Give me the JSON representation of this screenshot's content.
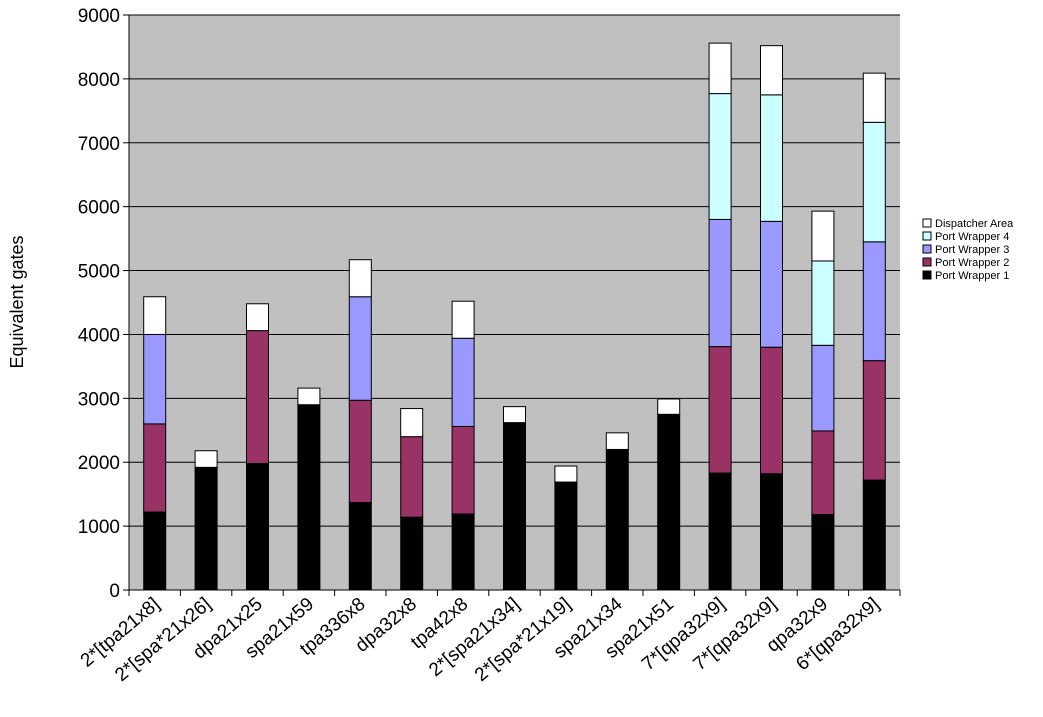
{
  "chart_data": {
    "type": "bar",
    "stacked": true,
    "title": "",
    "xlabel": "",
    "ylabel": "Equivalent gates",
    "ylim": [
      0,
      9000
    ],
    "yticks": [
      0,
      1000,
      2000,
      3000,
      4000,
      5000,
      6000,
      7000,
      8000,
      9000
    ],
    "grid": true,
    "legend_position": "right",
    "categories": [
      "2*[tpa21x8]",
      "2*[spa*21x26]",
      "dpa21x25",
      "spa21x59",
      "tpa336x8",
      "dpa32x8",
      "tpa42x8",
      "2*[spa21x34]",
      "2*[spa*21x19]",
      "spa21x34",
      "spa21x51",
      "7*[qpa32x9]",
      "7*[qpa32x9]",
      "qpa32x9",
      "6*[qpa32x9]"
    ],
    "series": [
      {
        "name": "Port Wrapper 1",
        "color": "#000000",
        "values": [
          1220,
          1920,
          1980,
          2900,
          1370,
          1140,
          1190,
          2620,
          1690,
          2200,
          2750,
          1830,
          1820,
          1180,
          1720
        ]
      },
      {
        "name": "Port Wrapper 2",
        "color": "#993366",
        "values": [
          1380,
          0,
          2080,
          0,
          1600,
          1260,
          1370,
          0,
          0,
          0,
          0,
          1980,
          1980,
          1310,
          1870
        ]
      },
      {
        "name": "Port Wrapper 3",
        "color": "#9999FF",
        "values": [
          1400,
          0,
          0,
          0,
          1620,
          0,
          1380,
          0,
          0,
          0,
          0,
          1990,
          1970,
          1340,
          1860
        ]
      },
      {
        "name": "Port Wrapper 4",
        "color": "#CCFFFF",
        "values": [
          0,
          0,
          0,
          0,
          0,
          0,
          0,
          0,
          0,
          0,
          0,
          1970,
          1980,
          1320,
          1870
        ]
      },
      {
        "name": "Dispatcher Area",
        "color": "#FFFFFF",
        "values": [
          590,
          260,
          420,
          260,
          580,
          440,
          580,
          250,
          250,
          260,
          240,
          790,
          770,
          780,
          770
        ]
      }
    ]
  }
}
